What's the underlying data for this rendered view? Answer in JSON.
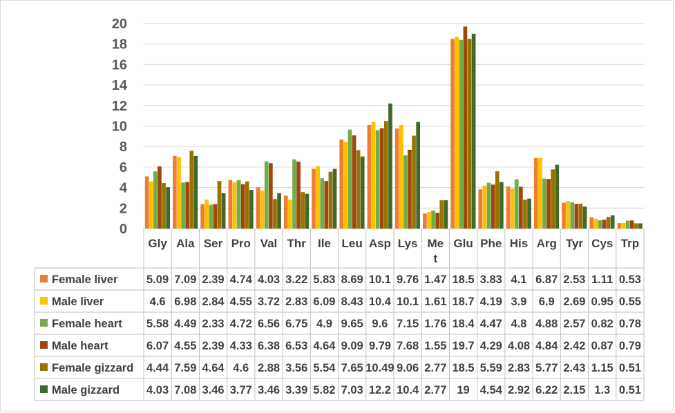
{
  "chart_data": {
    "type": "bar",
    "title": "",
    "xlabel": "",
    "ylabel": "",
    "ylim": [
      0,
      20
    ],
    "yticks": [
      0,
      2,
      4,
      6,
      8,
      10,
      12,
      14,
      16,
      18,
      20
    ],
    "grid": true,
    "legend": "data-table",
    "categories": [
      "Gly",
      "Ala",
      "Ser",
      "Pro",
      "Val",
      "Thr",
      "Ile",
      "Leu",
      "Asp",
      "Lys",
      "Met",
      "Glu",
      "Phe",
      "His",
      "Arg",
      "Tyr",
      "Cys",
      "Trp"
    ],
    "series": [
      {
        "name": "Female liver",
        "color": "#ED7D31",
        "values": [
          5.09,
          7.09,
          2.39,
          4.74,
          4.03,
          3.22,
          5.83,
          8.69,
          10.1,
          9.76,
          1.47,
          18.5,
          3.83,
          4.1,
          6.87,
          2.53,
          1.11,
          0.53
        ]
      },
      {
        "name": "Male liver",
        "color": "#FFC000",
        "values": [
          4.6,
          6.98,
          2.84,
          4.55,
          3.72,
          2.83,
          6.09,
          8.43,
          10.4,
          10.1,
          1.61,
          18.7,
          4.19,
          3.9,
          6.9,
          2.69,
          0.95,
          0.55
        ]
      },
      {
        "name": "Female heart",
        "color": "#70AD47",
        "values": [
          5.58,
          4.49,
          2.33,
          4.72,
          6.56,
          6.75,
          4.9,
          9.65,
          9.6,
          7.15,
          1.76,
          18.4,
          4.47,
          4.8,
          4.88,
          2.57,
          0.82,
          0.78
        ]
      },
      {
        "name": "Male heart",
        "color": "#9E480E",
        "values": [
          6.07,
          4.55,
          2.39,
          4.33,
          6.38,
          6.53,
          4.64,
          9.09,
          9.79,
          7.68,
          1.55,
          19.7,
          4.29,
          4.08,
          4.84,
          2.42,
          0.87,
          0.79
        ]
      },
      {
        "name": "Female gizzard",
        "color": "#997300",
        "values": [
          4.44,
          7.59,
          4.64,
          4.6,
          2.88,
          3.56,
          5.54,
          7.65,
          10.49,
          9.06,
          2.77,
          18.5,
          5.59,
          2.83,
          5.77,
          2.43,
          1.15,
          0.51
        ]
      },
      {
        "name": "Male gizzard",
        "color": "#43682B",
        "values": [
          4.03,
          7.08,
          3.46,
          3.77,
          3.46,
          3.39,
          5.82,
          7.03,
          12.2,
          10.4,
          2.77,
          19,
          4.54,
          2.92,
          6.22,
          2.15,
          1.3,
          0.51
        ]
      }
    ],
    "table_text": [
      [
        "5.09",
        "7.09",
        "2.39",
        "4.74",
        "4.03",
        "3.22",
        "5.83",
        "8.69",
        "10.1",
        "9.76",
        "1.47",
        "18.5",
        "3.83",
        "4.1",
        "6.87",
        "2.53",
        "1.11",
        "0.53"
      ],
      [
        "4.6",
        "6.98",
        "2.84",
        "4.55",
        "3.72",
        "2.83",
        "6.09",
        "8.43",
        "10.4",
        "10.1",
        "1.61",
        "18.7",
        "4.19",
        "3.9",
        "6.9",
        "2.69",
        "0.95",
        "0.55"
      ],
      [
        "5.58",
        "4.49",
        "2.33",
        "4.72",
        "6.56",
        "6.75",
        "4.9",
        "9.65",
        "9.6",
        "7.15",
        "1.76",
        "18.4",
        "4.47",
        "4.8",
        "4.88",
        "2.57",
        "0.82",
        "0.78"
      ],
      [
        "6.07",
        "4.55",
        "2.39",
        "4.33",
        "6.38",
        "6.53",
        "4.64",
        "9.09",
        "9.79",
        "7.68",
        "1.55",
        "19.7",
        "4.29",
        "4.08",
        "4.84",
        "2.42",
        "0.87",
        "0.79"
      ],
      [
        "4.44",
        "7.59",
        "4.64",
        "4.6",
        "2.88",
        "3.56",
        "5.54",
        "7.65",
        "10.49",
        "9.06",
        "2.77",
        "18.5",
        "5.59",
        "2.83",
        "5.77",
        "2.43",
        "1.15",
        "0.51"
      ],
      [
        "4.03",
        "7.08",
        "3.46",
        "3.77",
        "3.46",
        "3.39",
        "5.82",
        "7.03",
        "12.2",
        "10.4",
        "2.77",
        "19",
        "4.54",
        "2.92",
        "6.22",
        "2.15",
        "1.3",
        "0.51"
      ]
    ]
  }
}
